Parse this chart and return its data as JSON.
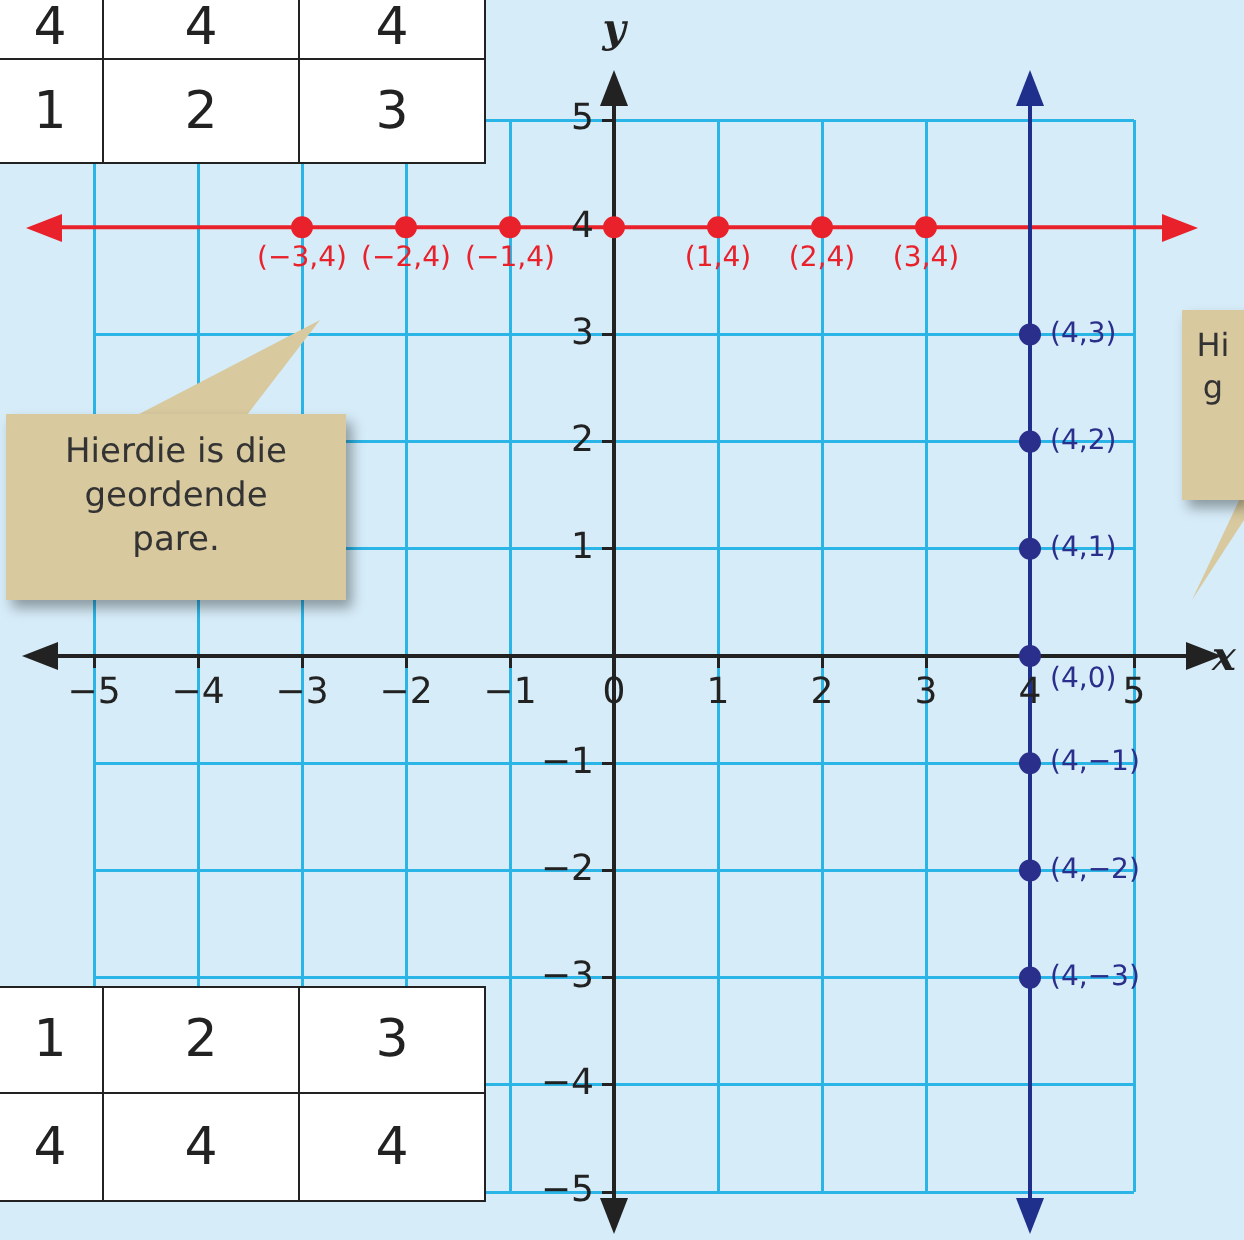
{
  "chart_data": {
    "type": "scatter",
    "xlabel": "x",
    "ylabel": "y",
    "xlim": [
      -5,
      5
    ],
    "ylim": [
      -5,
      5
    ],
    "xticks": [
      {
        "value": -5,
        "label": "−5"
      },
      {
        "value": -4,
        "label": "−4"
      },
      {
        "value": -3,
        "label": "−3"
      },
      {
        "value": -2,
        "label": "−2"
      },
      {
        "value": -1,
        "label": "−1"
      },
      0,
      1,
      2,
      3,
      4,
      5
    ],
    "yticks": [
      {
        "value": -5,
        "label": "−5"
      },
      {
        "value": -4,
        "label": "−4"
      },
      {
        "value": -3,
        "label": "−3"
      },
      {
        "value": -2,
        "label": "−2"
      },
      {
        "value": -1,
        "label": "−1"
      },
      {
        "value": 0,
        "label": null
      },
      1,
      2,
      3,
      4,
      5
    ],
    "grid": true,
    "legend": false,
    "marker": "circle",
    "ref_lines": [
      {
        "axis": "y",
        "value": 4,
        "color": "#e8212b"
      },
      {
        "axis": "x",
        "value": 4,
        "color": "#1f2f8c"
      }
    ],
    "series": [
      {
        "color": "#e8212b",
        "x": [
          -3,
          -2,
          -1,
          0,
          1,
          2,
          3
        ],
        "values": [
          4,
          4,
          4,
          4,
          4,
          4,
          4
        ]
      },
      {
        "color": "#2a2f8c",
        "x": [
          4,
          4,
          4,
          4,
          4,
          4,
          4
        ],
        "values": [
          3,
          2,
          1,
          0,
          -1,
          -2,
          -3
        ]
      }
    ],
    "annotations": [
      "Hierdie is die geordende pare.",
      "Hi\ng",
      "4",
      "4",
      "4",
      "1",
      "2",
      "3",
      "1",
      "2",
      "3",
      "4",
      "4",
      "4",
      {
        "text": "(−3,4)",
        "x": -3,
        "y": 4
      },
      {
        "text": "(−2,4)",
        "x": -2,
        "y": 4
      },
      {
        "text": "(−1,4)",
        "x": -1,
        "y": 4
      },
      {
        "text": "(1,4)",
        "x": 1,
        "y": 4
      },
      {
        "text": "(2,4)",
        "x": 2,
        "y": 4
      },
      {
        "text": "(3,4)",
        "x": 3,
        "y": 4
      },
      {
        "text": "(4,3)",
        "x": 4,
        "y": 3
      },
      {
        "text": "(4,2)",
        "x": 4,
        "y": 2
      },
      {
        "text": "(4,1)",
        "x": 4,
        "y": 1
      },
      {
        "text": "(4,0)",
        "x": 4,
        "y": 0
      },
      {
        "text": "(4,−1)",
        "x": 4,
        "y": -1
      },
      {
        "text": "(4,−2)",
        "x": 4,
        "y": -2
      },
      {
        "text": "(4,−3)",
        "x": 4,
        "y": -3
      }
    ]
  }
}
